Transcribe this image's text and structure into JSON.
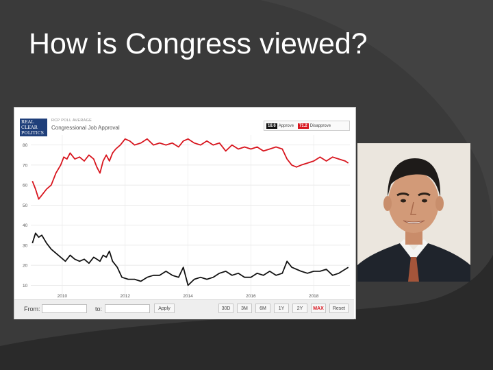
{
  "slide": {
    "title": "How is Congress viewed?"
  },
  "widget": {
    "logo_lines": [
      "REAL",
      "CLEAR",
      "POLITICS"
    ],
    "average_label": "RCP POLL AVERAGE",
    "legend": [
      {
        "value": "18.6",
        "name": "Approve",
        "color": "#111111"
      },
      {
        "value": "71.2",
        "name": "Disapprove",
        "color": "#d8141d"
      }
    ],
    "from_label": "From:",
    "to_label": "to:",
    "apply_label": "Apply",
    "range_buttons": [
      "30D",
      "3M",
      "6M",
      "1Y",
      "2Y",
      "MAX",
      "Reset"
    ],
    "active_button": "MAX"
  },
  "chart_data": {
    "type": "line",
    "title": "Congressional Job Approval",
    "xlabel": "",
    "ylabel": "",
    "x_ticks": [
      "2010",
      "2012",
      "2014",
      "2016",
      "2018"
    ],
    "y_ticks": [
      10,
      20,
      30,
      40,
      50,
      60,
      70,
      80
    ],
    "ylim": [
      5,
      85
    ],
    "xlim": [
      2009.0,
      2019.15
    ],
    "grid": true,
    "legend_position": "top-right",
    "series": [
      {
        "name": "Disapprove",
        "color": "#d8141d",
        "x": [
          2009.05,
          2009.15,
          2009.25,
          2009.35,
          2009.5,
          2009.65,
          2009.8,
          2009.95,
          2010.05,
          2010.15,
          2010.25,
          2010.4,
          2010.55,
          2010.7,
          2010.85,
          2011.0,
          2011.1,
          2011.2,
          2011.3,
          2011.4,
          2011.5,
          2011.6,
          2011.7,
          2011.85,
          2012.0,
          2012.15,
          2012.3,
          2012.5,
          2012.7,
          2012.9,
          2013.1,
          2013.3,
          2013.5,
          2013.7,
          2013.85,
          2014.0,
          2014.2,
          2014.4,
          2014.6,
          2014.8,
          2015.0,
          2015.2,
          2015.4,
          2015.6,
          2015.8,
          2016.0,
          2016.2,
          2016.4,
          2016.6,
          2016.8,
          2017.0,
          2017.15,
          2017.3,
          2017.45,
          2017.6,
          2017.8,
          2018.0,
          2018.2,
          2018.4,
          2018.6,
          2018.8,
          2019.0,
          2019.1
        ],
        "values": [
          62,
          58,
          53,
          55,
          58,
          60,
          66,
          70,
          74,
          73,
          76,
          73,
          74,
          72,
          75,
          73,
          69,
          66,
          72,
          75,
          72,
          76,
          78,
          80,
          83,
          82,
          80,
          81,
          83,
          80,
          81,
          80,
          81,
          79,
          82,
          83,
          81,
          80,
          82,
          80,
          81,
          77,
          80,
          78,
          79,
          78,
          79,
          77,
          78,
          79,
          78,
          73,
          70,
          69,
          70,
          71,
          72,
          74,
          72,
          74,
          73,
          72,
          71
        ]
      },
      {
        "name": "Approve",
        "color": "#111111",
        "x": [
          2009.05,
          2009.15,
          2009.25,
          2009.35,
          2009.5,
          2009.65,
          2009.8,
          2009.95,
          2010.1,
          2010.25,
          2010.4,
          2010.55,
          2010.7,
          2010.85,
          2011.0,
          2011.1,
          2011.2,
          2011.3,
          2011.4,
          2011.5,
          2011.6,
          2011.75,
          2011.9,
          2012.1,
          2012.3,
          2012.5,
          2012.7,
          2012.9,
          2013.1,
          2013.3,
          2013.5,
          2013.7,
          2013.85,
          2014.0,
          2014.2,
          2014.4,
          2014.6,
          2014.8,
          2015.0,
          2015.2,
          2015.4,
          2015.6,
          2015.8,
          2016.0,
          2016.2,
          2016.4,
          2016.6,
          2016.8,
          2017.0,
          2017.15,
          2017.3,
          2017.45,
          2017.6,
          2017.8,
          2018.0,
          2018.2,
          2018.4,
          2018.6,
          2018.8,
          2019.0,
          2019.1
        ],
        "values": [
          31,
          36,
          34,
          35,
          31,
          28,
          26,
          24,
          22,
          25,
          23,
          22,
          23,
          21,
          24,
          23,
          22,
          25,
          24,
          27,
          22,
          19,
          14,
          13,
          13,
          12,
          14,
          15,
          15,
          17,
          15,
          14,
          19,
          10,
          13,
          14,
          13,
          14,
          16,
          17,
          15,
          16,
          14,
          14,
          16,
          15,
          17,
          15,
          16,
          22,
          19,
          18,
          17,
          16,
          17,
          17,
          18,
          15,
          16,
          18,
          19
        ]
      }
    ]
  }
}
